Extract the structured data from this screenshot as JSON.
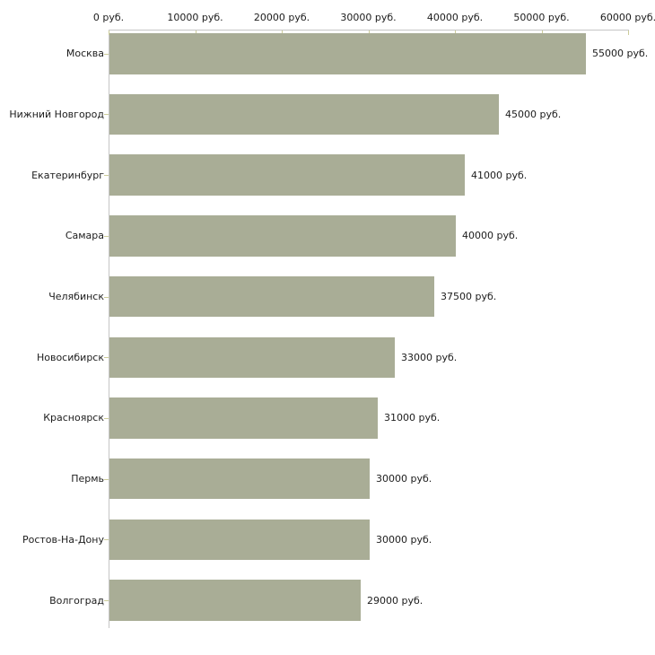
{
  "colors": {
    "background": "#ffffff",
    "bar": "#a9ad96",
    "axis_line": "#c6c6c6",
    "tick": "#cccc99",
    "text": "#1c1c1c"
  },
  "chart_data": {
    "type": "bar",
    "orientation": "horizontal",
    "title": "",
    "xlabel": "",
    "ylabel": "",
    "unit": "руб.",
    "grid": false,
    "legend": null,
    "xlim": [
      0,
      60000
    ],
    "x_ticks": [
      {
        "value": 0,
        "label": "0 руб."
      },
      {
        "value": 10000,
        "label": "10000 руб."
      },
      {
        "value": 20000,
        "label": "20000 руб."
      },
      {
        "value": 30000,
        "label": "30000 руб."
      },
      {
        "value": 40000,
        "label": "40000 руб."
      },
      {
        "value": 50000,
        "label": "50000 руб."
      },
      {
        "value": 60000,
        "label": "60000 руб."
      }
    ],
    "categories": [
      "Москва",
      "Нижний Новгород",
      "Екатеринбург",
      "Самара",
      "Челябинск",
      "Новосибирск",
      "Красноярск",
      "Пермь",
      "Ростов-На-Дону",
      "Волгоград"
    ],
    "values": [
      55000,
      45000,
      41000,
      40000,
      37500,
      33000,
      31000,
      30000,
      30000,
      29000
    ],
    "value_labels": [
      "55000 руб.",
      "45000 руб.",
      "41000 руб.",
      "40000 руб.",
      "37500 руб.",
      "33000 руб.",
      "31000 руб.",
      "30000 руб.",
      "30000 руб.",
      "29000 руб."
    ]
  }
}
